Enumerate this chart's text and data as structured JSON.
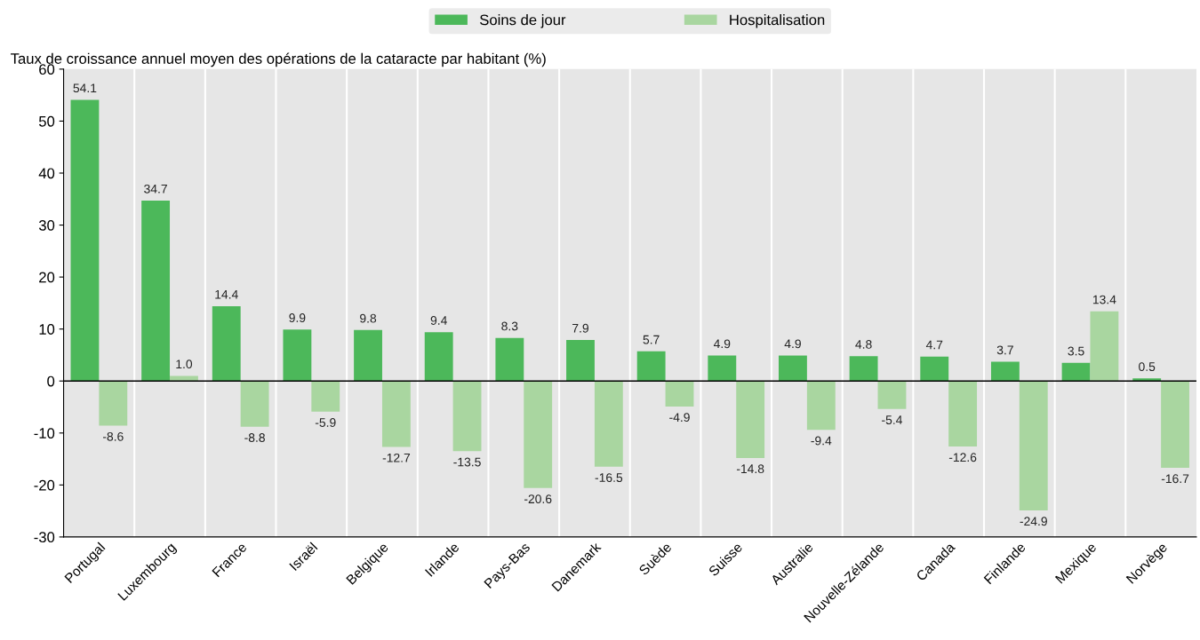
{
  "chart_data": {
    "type": "bar",
    "ylabel": "Taux de croissance annuel moyen des opérations de la cataracte par habitant (%)",
    "categories": [
      "Portugal",
      "Luxembourg",
      "France",
      "Israël",
      "Belgique",
      "Irlande",
      "Pays-Bas",
      "Danemark",
      "Suède",
      "Suisse",
      "Australie",
      "Nouvelle-Zélande",
      "Canada",
      "Finlande",
      "Mexique",
      "Norvège"
    ],
    "series": [
      {
        "name": "Soins de jour",
        "color": "#4cb85a",
        "values": [
          54.1,
          34.7,
          14.4,
          9.9,
          9.8,
          9.4,
          8.3,
          7.9,
          5.7,
          4.9,
          4.9,
          4.8,
          4.7,
          3.7,
          3.5,
          0.5
        ],
        "value_labels": [
          "54.1",
          "34.7",
          "14.4",
          "9.9",
          "9.8",
          "9.4",
          "8.3",
          "7.9",
          "5.7",
          "4.9",
          "4.9",
          "4.8",
          "4.7",
          "3.7",
          "3.5",
          "0.5"
        ]
      },
      {
        "name": "Hospitalisation",
        "color": "#a9d6a0",
        "values": [
          -8.6,
          1.0,
          -8.8,
          -5.9,
          -12.7,
          -13.5,
          -20.6,
          -16.5,
          -4.9,
          -14.8,
          -9.4,
          -5.4,
          -12.6,
          -24.9,
          13.4,
          -16.7
        ],
        "value_labels": [
          "-8.6",
          "1.0",
          "-8.8",
          "-5.9",
          "-12.7",
          "-13.5",
          "-20.6",
          "-16.5",
          "-4.9",
          "-14.8",
          "-9.4",
          "-5.4",
          "-12.6",
          "-24.9",
          "13.4",
          "-16.7"
        ]
      }
    ],
    "ylim": [
      -30,
      60
    ],
    "yticks": [
      -30,
      -20,
      -10,
      0,
      10,
      20,
      30,
      40,
      50,
      60
    ],
    "grid": "x",
    "legend": "top"
  }
}
